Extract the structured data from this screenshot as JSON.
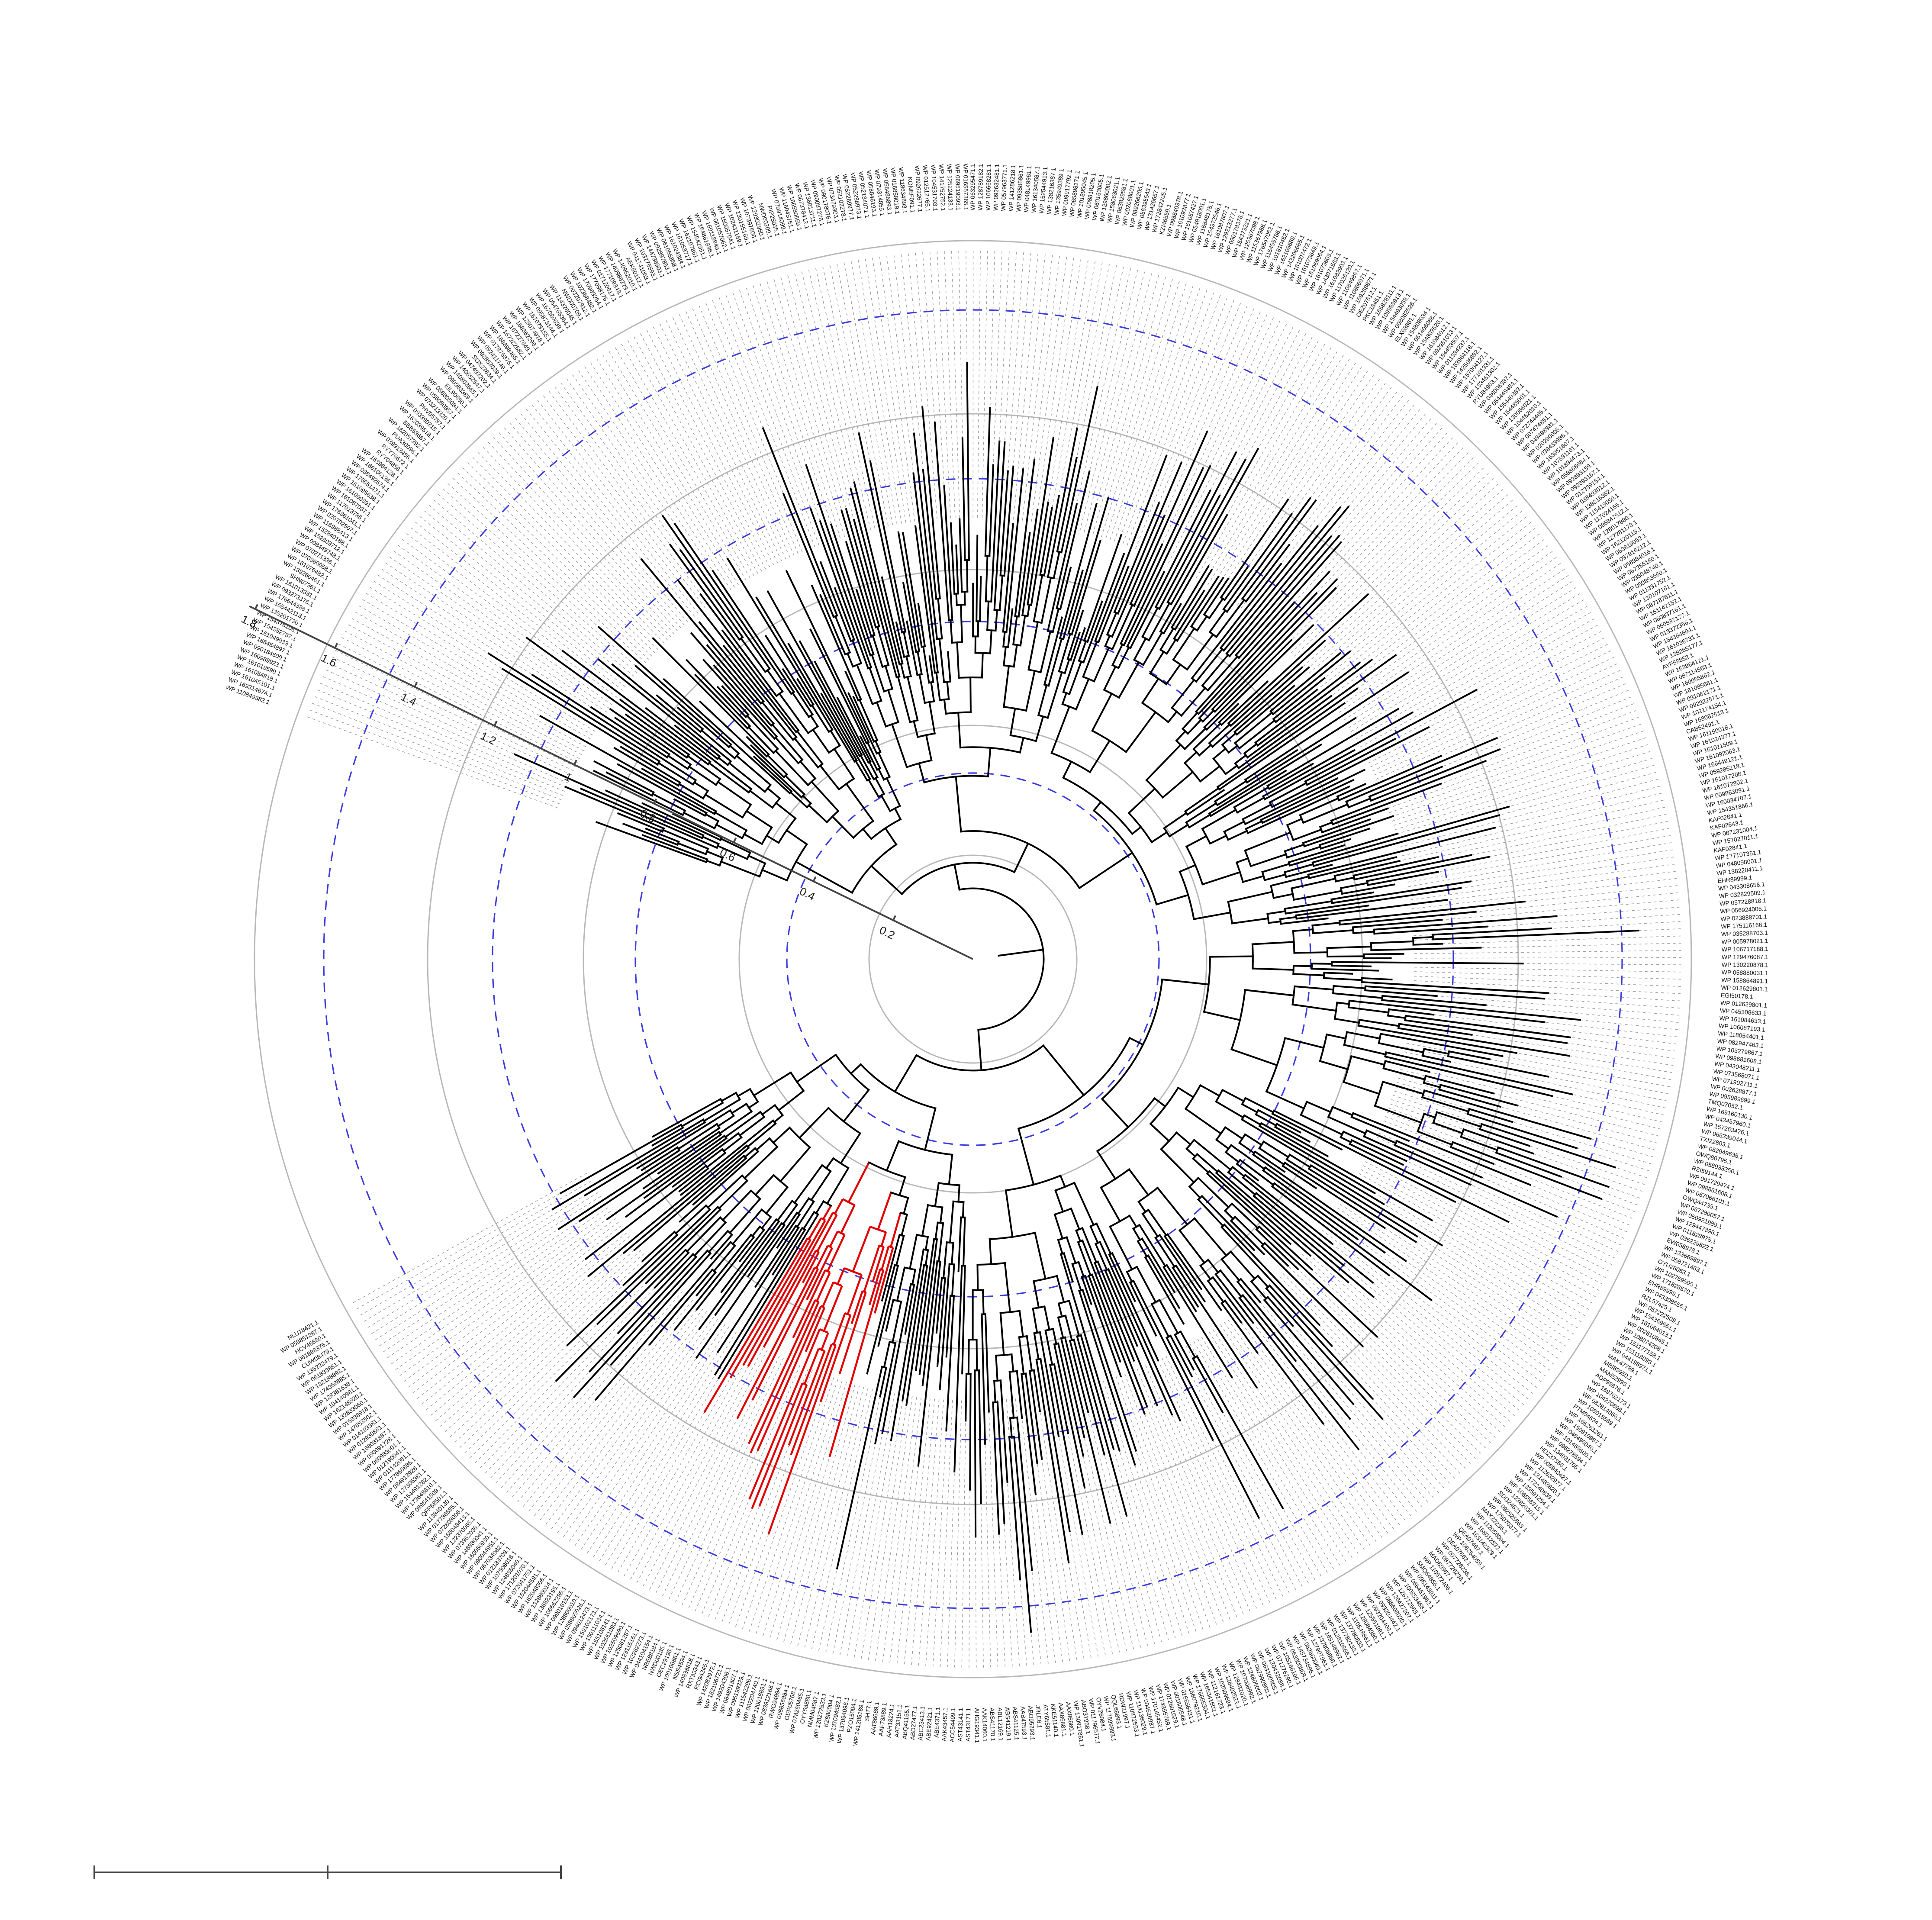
{
  "figure": {
    "type": "circular phylogenetic tree",
    "highlight_color": "#e00000",
    "ring_color_grey": "#b8b8b8",
    "ring_color_blue": "#3a3ae0"
  },
  "radial_axis": {
    "ticks": [
      "0.2",
      "0.4",
      "0.6",
      "0.8",
      "1",
      "1.2",
      "1.4",
      "1.6",
      "1.8"
    ]
  },
  "leaf_labels": [
    "WP 110849382.1",
    "WP 169314674.1",
    "WP 161045101.1",
    "WP 161054818.1",
    "WP 161019599.1",
    "WP 160989923.1",
    "WP 090184600.1",
    "WP 166454897.1",
    "WP 161049933.1",
    "WP 154352737.1",
    "WP 154376106.1",
    "WP 135201730.1",
    "WP 155442113.1",
    "WP 176644388.1",
    "WP 093273376.1",
    "WP 161013331.1",
    "SHN07361.1",
    "WP 139260461.1",
    "WP 161076482.1",
    "WP 070360058.1",
    "WP 070271336.1",
    "WP 008449748.1",
    "WP 152803712.1",
    "WP 152840188.1",
    "WP 116988413.1",
    "WP 020702507.1",
    "WP 176361041.1",
    "WP 117013786.1",
    "WP 161087037.1",
    "WP 161090391.1",
    "WP 161095638.1",
    "WP 176651471.1",
    "WP 038492674.1",
    "WP 166106136.1",
    "WP 163964128.1",
    "RYY04858.1",
    "RYY76672.1",
    "WP 039913456.1",
    "PUA30096.1",
    "WP 162057392.1",
    "BBB58687.1",
    "WP 162039518.1",
    "WP 093390315.1",
    "PHV05787.1",
    "WP 073213320.1",
    "WP 056080857.1",
    "WP 056805084.1",
    "EIL90650.1",
    "WP 090983389.1",
    "WP 140803665.1",
    "WP 140652547.1",
    "WP 047493202.1",
    "SOX23834.1",
    "WP 092853029.1",
    "WP 092411749.1",
    "WP 017875875.1",
    "WP 168898465.1",
    "WP 167222682.1",
    "WP 167227649.1",
    "WP 168862296.1",
    "WP 129074918.1",
    "WP 167079155.1",
    "WP 095873144.1",
    "WP 167080639.1",
    "WP 054765364.1",
    "WP 114326045.1",
    "NWD00709.1",
    "WP 003207912.1",
    "WP 102368482.1",
    "WP 170969254.1",
    "WP 177098176.1",
    "WP 017120617.1",
    "WP 177109343.1",
    "WP 140986229.1",
    "WP 140962010.1",
    "AEK60112.1",
    "WP 041741063.1",
    "WP 103275593.1",
    "WP 144736903.1",
    "WP 092897853.1",
    "WP 061056858.1",
    "WP 161024384.1",
    "WP 161053717.1",
    "WP 162107861.1",
    "WP 154542951.1",
    "WP 164861836.1",
    "WP 169118949.1",
    "WP 061057062.1",
    "WP 160057041.1",
    "WP 102431159.1",
    "WP 130155169.1",
    "WP 107397606.1",
    "WP 129302950.1",
    "NWD00209.1",
    "PIP25035.1",
    "WP 079914099.1",
    "WP 116045751.1",
    "WP 166580569.1",
    "WP 067378412.1",
    "WP 136013711.1",
    "WP 090087276.1",
    "WP 090178076.1",
    "WP 073479303.1",
    "WP 052102278.1",
    "WP 052289977.1",
    "WP 052288973.1",
    "WP 052134071.1",
    "WP 058846193.1",
    "WP 079314855.1",
    "WP 058486893.1",
    "WP 016858019.1",
    "WP 118634893.1",
    "KONEF091.1",
    "WP 092622677.1",
    "WP 012512765.1",
    "WP 104531703.1",
    "WP 141752752.1",
    "WP 125224133.1",
    "WP 069519093.1",
    "WP 016557365.1",
    "WP 063295471.1",
    "WP 128789182.1",
    "WP 106668281.1",
    "WP 092632481.1",
    "WP 057963771.1",
    "WP 141286218.1",
    "WP 093586861.1",
    "WP 048149961.1",
    "WP 161340587.1",
    "WP 152544913.1",
    "WP 138216387.1",
    "WP 135949389.1",
    "WP 009917792.1",
    "WP 065898171.1",
    "WP 101895045.1",
    "WP 008818205.1",
    "WP 060163005.1",
    "WP 129860002.1",
    "WP 158063021.1",
    "WP 063829581.1",
    "WP 002068001.1",
    "WP 089266205.1",
    "WP 056395543.1",
    "WP 131426657.1",
    "WP 172842205.1",
    "KZI46559.1",
    "WP 098840378.1",
    "WP 161093877.1",
    "WP 161057427.1",
    "WP 054918001.1",
    "WP 116848175.1",
    "WP 154372546.1",
    "WP 161087807.1",
    "WP 129213277.1",
    "WP 090178376.1",
    "WP 154373221.1",
    "WP 125367098.1",
    "WP 115367988.1",
    "WP 176547062.1",
    "WP 115455786.1",
    "WP 101810452.1",
    "WP 162109689.1",
    "WP 142206685.1",
    "WP 161007472.1",
    "WP 161073649.1",
    "WP 161069064.1",
    "WP 161073603.1",
    "WP 143071563.1",
    "WP 161082903.1",
    "WP 117026120.1",
    "WP 110849867.1",
    "WP 110866971.1",
    "WP 159268871.1",
    "OEZ07612.1",
    "PKC18451.1",
    "WP 165828111.1",
    "WP 109988913.1",
    "WP 154493058.1",
    "WP 008062526.1",
    "ELX68861.1",
    "WP 154808034.1",
    "WP 051406088.1",
    "WP 154803526.1",
    "WP 161084012.1",
    "WP 092951013.1",
    "WP 154453507.1",
    "WP 011384237.1",
    "WP 163964118.1",
    "WP 142506882.1",
    "WP 157004127.1",
    "WP 177101331.1",
    "WP 133461302.1",
    "RYU84963.1",
    "WP 048006387.1",
    "WP 054449484.1",
    "WP 155440383.1",
    "WP 154485001.1",
    "WP 130066021.1",
    "WP 104462010.1",
    "WP 072744465.1",
    "WP 007474851.1",
    "WP 049498981.1",
    "WP 020290005.1",
    "WP 038439986.1",
    "WP 163951607.1",
    "WP 107591161.1",
    "WP 101894473.1",
    "WP 058868684.1",
    "WP 092893159.1",
    "WP 092893167.1",
    "WP 012339154.1",
    "WP 038493012.1",
    "WP 138216352.1",
    "WP 115419050.1",
    "WP 117024155.1",
    "WP 095847512.1",
    "WP 128017880.1",
    "WP 127281173.1",
    "WP 162120115.1",
    "WP 063819052.1",
    "WP 097916212.1",
    "WP 058984016.1",
    "WP 067265160.1",
    "WP 095048740.1",
    "WP 050853560.1",
    "WP 011391752.1",
    "WP 130107161.1",
    "WP 087187611.1",
    "WP 161142152.1",
    "WP 060837161.1",
    "WP 060837177.1",
    "WP 013372356.1",
    "WP 154364604.1",
    "WP 161036731.1",
    "WP 138265177.1",
    "AYF58852.1",
    "WP 163964121.1",
    "WP 087114563.1",
    "WP 160055862.1",
    "WP 161085661.1",
    "WP 091082171.1",
    "WP 092922571.1",
    "WP 102174154.1",
    "WP 168082513.1",
    "CAB62491.1",
    "WP 161150018.1",
    "WP 161024377.1",
    "WP 161011509.1",
    "WP 161092063.1",
    "WP 166449121.1",
    "WP 059286218.1",
    "WP 161017208.1",
    "WP 161072802.1",
    "WP 009863091.1",
    "WP 160034707.1",
    "WP 154351866.1",
    "KAF02841.1",
    "KAF02643.1",
    "WP 087231004.1",
    "WP 157027011.1",
    "KAF02841.1",
    "WP 177107351.1",
    "WP 048098001.1",
    "WP 138220411.1",
    "EHR89999.1",
    "WP 043308656.1",
    "WP 032829509.1",
    "WP 057228818.1",
    "WP 056924006.1",
    "WP 023888701.1",
    "WP 175116166.1",
    "WP 035288703.1",
    "WP 005978021.1",
    "WP 106717188.1",
    "WP 129476087.1",
    "WP 130220878.1",
    "WP 058880031.1",
    "WP 158864891.1",
    "WP 012629801.1",
    "EGI50178.1",
    "WP 012629801.1",
    "WP 045308633.1",
    "WP 161084633.1",
    "WP 106087193.1",
    "WP 118054401.1",
    "WP 082947463.1",
    "WP 103279867.1",
    "WP 098681608.1",
    "WP 043048211.1",
    "WP 073568071.1",
    "WP 071902711.1",
    "WP 002628877.1",
    "WP 095989699.1",
    "TMQ07052.1",
    "WP 169160130.1",
    "WP 043457960.1",
    "WP 157263476.1",
    "WP 066339044.1",
    "TXI22803.1",
    "WP 082949635.1",
    "OWQ80795.1",
    "WP 058933250.1",
    "RZI59144.1",
    "WP 091729474.1",
    "WP 098861608.1",
    "WP 067066101.1",
    "OWQ44735.1",
    "WP 067280057.1",
    "WP 050921989.1",
    "WP 129447896.1",
    "WP 011828975.1",
    "WP 036229822.1",
    "EW058978.1",
    "WP 133669897.1",
    "WP 058721463.1",
    "OYU26063.1",
    "WP 102759505.1",
    "WP 171826570.1",
    "EHR89999.1",
    "WP 043308656.1",
    "RZL57425.1",
    "WP 057222509.1",
    "WP 154369651.1",
    "WP 161064013.1",
    "WP 002610845.1",
    "WP 108074208.1",
    "WP 151177158.1",
    "WP 151118093.1",
    "WP 044198971.1",
    "MAK47789.1",
    "MBI83950.1",
    "MAM52993.1",
    "ADP98876.1",
    "WP 169702173.1",
    "WP 104270898.1",
    "WP 082814066.1",
    "WP 108018589.1",
    "PTM54634.1",
    "WP 166263263.1",
    "WP 150910987.1",
    "WP 048496040.1",
    "WP 101469600.1",
    "WP 096278594.1",
    "WP 134031705.1",
    "HDZ37366.1",
    "WP 008940427.1",
    "WP 112632977.1",
    "WP 131483820.1",
    "WP 172240839.1",
    "WP 133591254.1",
    "WP 106556313.1",
    "WP 123820301.1",
    "SDG24521.1",
    "WP 092525863.1",
    "WP 175070377.1",
    "MAX32236.1",
    "WP 112056094.1",
    "WP 168012532.1",
    "WP 163142329.1",
    "QEA07467.1",
    "WP 106254059.1",
    "QEA07663.1",
    "WP 007726238.1",
    "WP 087726238.1",
    "MAD69967.1",
    "WP 110572406.1",
    "SMQ64856.1",
    "WP 096143911.1",
    "WP 066451962.1",
    "WP 100853468.1",
    "WP 126772563.1",
    "WP 126427207.1",
    "WP 088608020.1",
    "WP 093204442.1",
    "WP 093204406.1",
    "WP 125551991.1",
    "WP 128084980.1",
    "WP 110648861.1",
    "WP 137780833.1",
    "WP 137782133.1",
    "WP 012810866.1",
    "WP 165148962.1",
    "WP 137806866.1",
    "WP 137907961.1",
    "WP 062660049.1",
    "WP 145734896.1",
    "WP 063300869.1",
    "WP 105166106.1",
    "WP 071276290.1",
    "WP 120432088.1",
    "WP 063300805.1",
    "WP 062990860.1",
    "WP 124805002.1",
    "WP 107008992.1",
    "WP 128432020.1",
    "WP 128402522.1",
    "WP 102509694.1",
    "WP 112161723.1",
    "WP 165341502.1",
    "WP 176666304.1",
    "WP 156079210.1",
    "WP 016656431.1",
    "WP 001806548.1",
    "WP 012601029.1",
    "WP 174355789.1",
    "WP 170145452.1",
    "WP 004626987.1",
    "WP 114136029.1",
    "WP 110872553.1",
    "RDW21997.1",
    "QQL68893.1",
    "WP 117599993.1",
    "OYV26084.1",
    "WP 011796577.1",
    "ABO37958.1",
    "WP 130917881.1",
    "AAX86880.1",
    "AAX86881.1",
    "KKE51140.1",
    "ATY65581.1",
    "JRLE6.1",
    "ABO95293.1",
    "AAB47593.1",
    "ABS41125.1",
    "ABS41219.1",
    "ABL12169.1",
    "ABS41170.1",
    "AAK14060.1",
    "AHG19341.1",
    "AST43171.1",
    "AST43141.1",
    "ACC54499.1",
    "AAK43457.1",
    "ABE4371.1",
    "ABE92421.1",
    "ABC23413.1",
    "ABD27477.1",
    "ABQ41155.1",
    "AAT33151.1",
    "AAH18224.1",
    "AAF73889.1",
    "AAT86689.1",
    "SHT7.1",
    "WP 141285189.1",
    "PZO15004.1",
    "WP 137094098.1",
    "WP 137094582.1",
    "KZ880004.1",
    "WP 128272533.1",
    "NMM04587.1",
    "OYY53880.1",
    "WP 078260465.1",
    "OEP05768.1",
    "WP 098856884.1",
    "RWG94994.1",
    "WP 083912168.1",
    "WP 120018891.1",
    "WP 082204740.1",
    "WP 111542296.1",
    "WP 095199329.1",
    "WP 084801307.1",
    "WP 149204306.1",
    "WP 162106721.1",
    "WP 142082972.1",
    "RCI94245.1",
    "RXT33343.1",
    "WP 140838818.1",
    "NSS4594.1",
    "WP 100106861.1",
    "OEC29196.1",
    "NWD00135.1",
    "NBE88184.1",
    "WP 044104154.1",
    "WP 102262273.1",
    "WP 123115161.1",
    "WP 125061287.1",
    "WP 102509690.1",
    "WP 102561093.1",
    "WP 155106141.1",
    "WP 150111034.1",
    "WP 159102173.1",
    "WP 094012473.1",
    "WP 058805026.1",
    "WP 128800010.1",
    "WP 099016153.1",
    "WP 106662285.1",
    "WP 136823155.1",
    "WP 132880014.1",
    "WP 162048306.1",
    "WP 152044591.1",
    "WP 072041751.1",
    "WP 171201070.1",
    "WP 124835040.1",
    "WP 107508016.1",
    "WP 012183709.1",
    "WP 067034082.1",
    "WP 090044951.1",
    "WP 160050930.1",
    "WP 146880041.1",
    "WP 073962036.1",
    "WP 122370065.1",
    "WP 156048413.1",
    "WP 072808006.1",
    "WP 017786585.1",
    "WP 113840130.1",
    "QFP68501.1",
    "WP 089541509.1",
    "WP 173648810.1",
    "WP 154491282.1",
    "WP 127305381.1",
    "WP 084913928.1",
    "WP 177866886.1",
    "WP 011142081.1",
    "WP 012190041.1",
    "WP 060983001.1",
    "WP 090091728.1",
    "WP 168081887.1",
    "WP 012930861.1",
    "WP 014193381.1",
    "WP 147653502.1",
    "WP 015838918.1",
    "WP 132833060.1",
    "WP 162148920.1",
    "WP 104140981.1",
    "WP 128381638.1",
    "WP 174358885.1",
    "WP 132188893.1",
    "WP 061833881.1",
    "WP 135222479.1",
    "CUW08479.1",
    "WP 061898375.1",
    "HCV46680.1",
    "WP 059851287.1",
    "NLU18421.1"
  ]
}
